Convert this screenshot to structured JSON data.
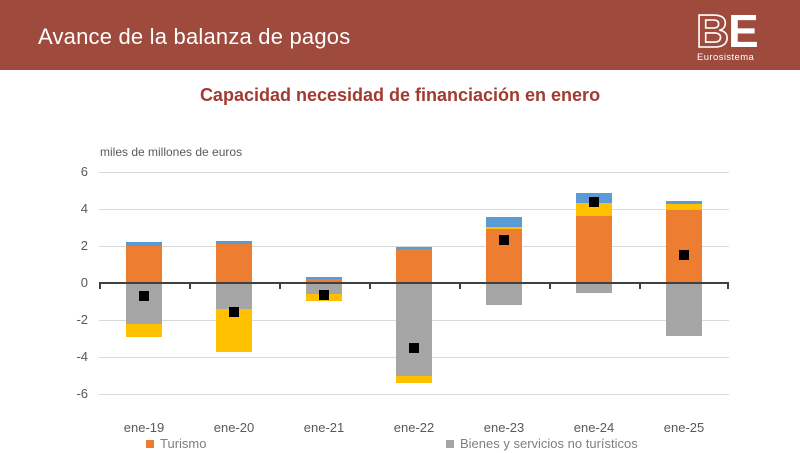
{
  "header": {
    "title": "Avance de la balanza de pagos",
    "logo": {
      "letter_b": "B",
      "letter_e": "E",
      "subtitle": "Eurosistema"
    }
  },
  "chart": {
    "title": "Capacidad necesidad de financiación en enero",
    "unit_label": "miles de millones de euros"
  },
  "chart_data": {
    "type": "bar",
    "stacked": true,
    "title": "Capacidad necesidad de financiación en enero",
    "ylabel": "miles de millones de euros",
    "ylim": [
      -6,
      6
    ],
    "yticks": [
      6,
      4,
      2,
      0,
      -2,
      -4,
      -6
    ],
    "grid": true,
    "legend_position": "bottom",
    "categories": [
      "ene-19",
      "ene-20",
      "ene-21",
      "ene-22",
      "ene-23",
      "ene-24",
      "ene-25"
    ],
    "series": [
      {
        "label": "Turismo",
        "color": "#ED7D31",
        "legend_visible": true,
        "values": [
          2.0,
          2.1,
          0.2,
          1.85,
          2.9,
          3.6,
          3.95
        ]
      },
      {
        "label": "Bienes y servicios no turísticos",
        "color": "#A5A5A5",
        "legend_visible": true,
        "values": [
          -2.2,
          -1.4,
          -0.6,
          -5.05,
          -1.2,
          -0.55,
          -2.85
        ]
      },
      {
        "label": "",
        "color": "#FFC000",
        "legend_visible": false,
        "values": [
          -0.7,
          -2.35,
          -0.35,
          -0.35,
          0.15,
          0.7,
          0.3
        ]
      },
      {
        "label": "",
        "color": "#5B9BD5",
        "legend_visible": false,
        "values": [
          0.2,
          0.15,
          0.1,
          0.1,
          0.5,
          0.55,
          0.2
        ]
      }
    ],
    "marker_series": {
      "label": "",
      "color": "#000000",
      "shape": "square",
      "values": [
        -0.7,
        -1.55,
        -0.65,
        -3.5,
        2.3,
        4.4,
        1.5
      ]
    }
  },
  "legend": {
    "items": [
      {
        "label": "Turismo",
        "color": "#ED7D31"
      },
      {
        "label": "Bienes y servicios no turísticos",
        "color": "#A5A5A5"
      }
    ]
  },
  "colors": {
    "header_bg": "#9E4A3C",
    "title_text": "#A13A31",
    "axis_text": "#595959",
    "gridline": "#D9D9D9",
    "zero_axis": "#404040",
    "legend_text": "#7F7F7F"
  }
}
